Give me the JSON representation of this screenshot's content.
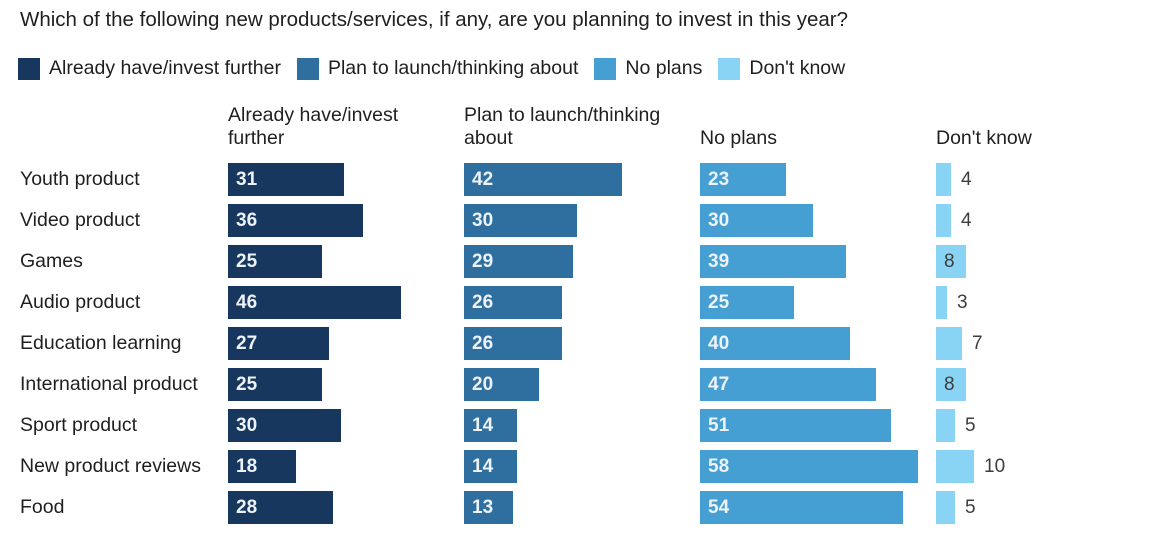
{
  "title": "Which of the following new products/services, if any, are you planning to invest in this year?",
  "legend": {
    "items": [
      {
        "label": "Already have/invest further",
        "color": "#17375e"
      },
      {
        "label": "Plan to launch/thinking about",
        "color": "#2f6f9f"
      },
      {
        "label": "No plans",
        "color": "#469fd3"
      },
      {
        "label": "Don't know",
        "color": "#89d3f4"
      }
    ]
  },
  "chart_data": {
    "type": "bar",
    "orientation": "horizontal",
    "title": "Which of the following new products/services, if any, are you planning to invest in this year?",
    "value_unit": "percent",
    "xlim": [
      0,
      63
    ],
    "grid": false,
    "legend_position": "top",
    "categories": [
      "Youth product",
      "Video product",
      "Games",
      "Audio product",
      "Education learning",
      "International product",
      "Sport product",
      "New product reviews",
      "Food"
    ],
    "series": [
      {
        "name": "Already have/invest further",
        "color": "#17375e",
        "labels_inside": true,
        "values": [
          31,
          36,
          25,
          46,
          27,
          25,
          30,
          18,
          28
        ]
      },
      {
        "name": "Plan to launch/thinking about",
        "color": "#2f6f9f",
        "labels_inside": true,
        "values": [
          42,
          30,
          29,
          26,
          26,
          20,
          14,
          14,
          13
        ]
      },
      {
        "name": "No plans",
        "color": "#469fd3",
        "labels_inside": true,
        "values": [
          23,
          30,
          39,
          25,
          40,
          47,
          51,
          58,
          54
        ]
      },
      {
        "name": "Don't know",
        "color": "#89d3f4",
        "labels_inside": false,
        "inside_label_rows": [
          2,
          5
        ],
        "values": [
          4,
          4,
          8,
          3,
          7,
          8,
          5,
          10,
          5
        ]
      }
    ]
  }
}
